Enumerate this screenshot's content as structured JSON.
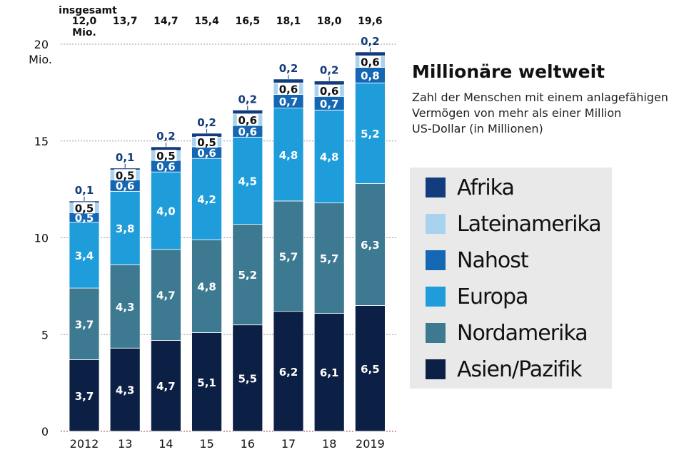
{
  "chart_data": {
    "type": "bar",
    "stacked": true,
    "title": "Millionäre weltweit",
    "subtitle_lines": [
      "Zahl der Menschen mit einem anlagefähigen",
      "Vermögen von mehr als einer Million",
      "US-Dollar (in Millionen)"
    ],
    "total_label": "insgesamt",
    "first_total_unit": "Mio.",
    "ylabel": "Mio.",
    "ylim": [
      0,
      20
    ],
    "yticks": [
      "0",
      "5",
      "10",
      "15",
      "20"
    ],
    "categories": [
      "2012",
      "13",
      "14",
      "15",
      "16",
      "17",
      "18",
      "2019"
    ],
    "totals": [
      "12,0",
      "13,7",
      "14,7",
      "15,4",
      "16,5",
      "18,1",
      "18,0",
      "19,6"
    ],
    "series": [
      {
        "name": "Asien/Pazifik",
        "color": "#0c1f45",
        "values": [
          3.7,
          4.3,
          4.7,
          5.1,
          5.5,
          6.2,
          6.1,
          6.5
        ],
        "labels": [
          "3,7",
          "4,3",
          "4,7",
          "5,1",
          "5,5",
          "6,2",
          "6,1",
          "6,5"
        ]
      },
      {
        "name": "Nordamerika",
        "color": "#3d7a92",
        "values": [
          3.7,
          4.3,
          4.7,
          4.8,
          5.2,
          5.7,
          5.7,
          6.3
        ],
        "labels": [
          "3,7",
          "4,3",
          "4,7",
          "4,8",
          "5,2",
          "5,7",
          "5,7",
          "6,3"
        ]
      },
      {
        "name": "Europa",
        "color": "#1f9ddb",
        "values": [
          3.4,
          3.8,
          4.0,
          4.2,
          4.5,
          4.8,
          4.8,
          5.2
        ],
        "labels": [
          "3,4",
          "3,8",
          "4,0",
          "4,2",
          "4,5",
          "4,8",
          "4,8",
          "5,2"
        ]
      },
      {
        "name": "Nahost",
        "color": "#1467b3",
        "values": [
          0.5,
          0.6,
          0.6,
          0.6,
          0.6,
          0.7,
          0.7,
          0.8
        ],
        "labels": [
          "0,5",
          "0,6",
          "0,6",
          "0,6",
          "0,6",
          "0,7",
          "0,7",
          "0,8"
        ]
      },
      {
        "name": "Lateinamerika",
        "color": "#a9d2ef",
        "values": [
          0.5,
          0.5,
          0.5,
          0.5,
          0.6,
          0.6,
          0.6,
          0.6
        ],
        "labels": [
          "0,5",
          "0,5",
          "0,5",
          "0,5",
          "0,6",
          "0,6",
          "0,6",
          "0,6"
        ]
      },
      {
        "name": "Afrika",
        "color": "#123c7c",
        "values": [
          0.1,
          0.1,
          0.2,
          0.2,
          0.2,
          0.2,
          0.2,
          0.2
        ],
        "labels": [
          "0,1",
          "0,1",
          "0,2",
          "0,2",
          "0,2",
          "0,2",
          "0,2",
          "0,2"
        ]
      }
    ],
    "legend_order": [
      "Afrika",
      "Lateinamerika",
      "Nahost",
      "Europa",
      "Nordamerika",
      "Asien/Pazifik"
    ],
    "grid": true,
    "legend_position": "right"
  }
}
